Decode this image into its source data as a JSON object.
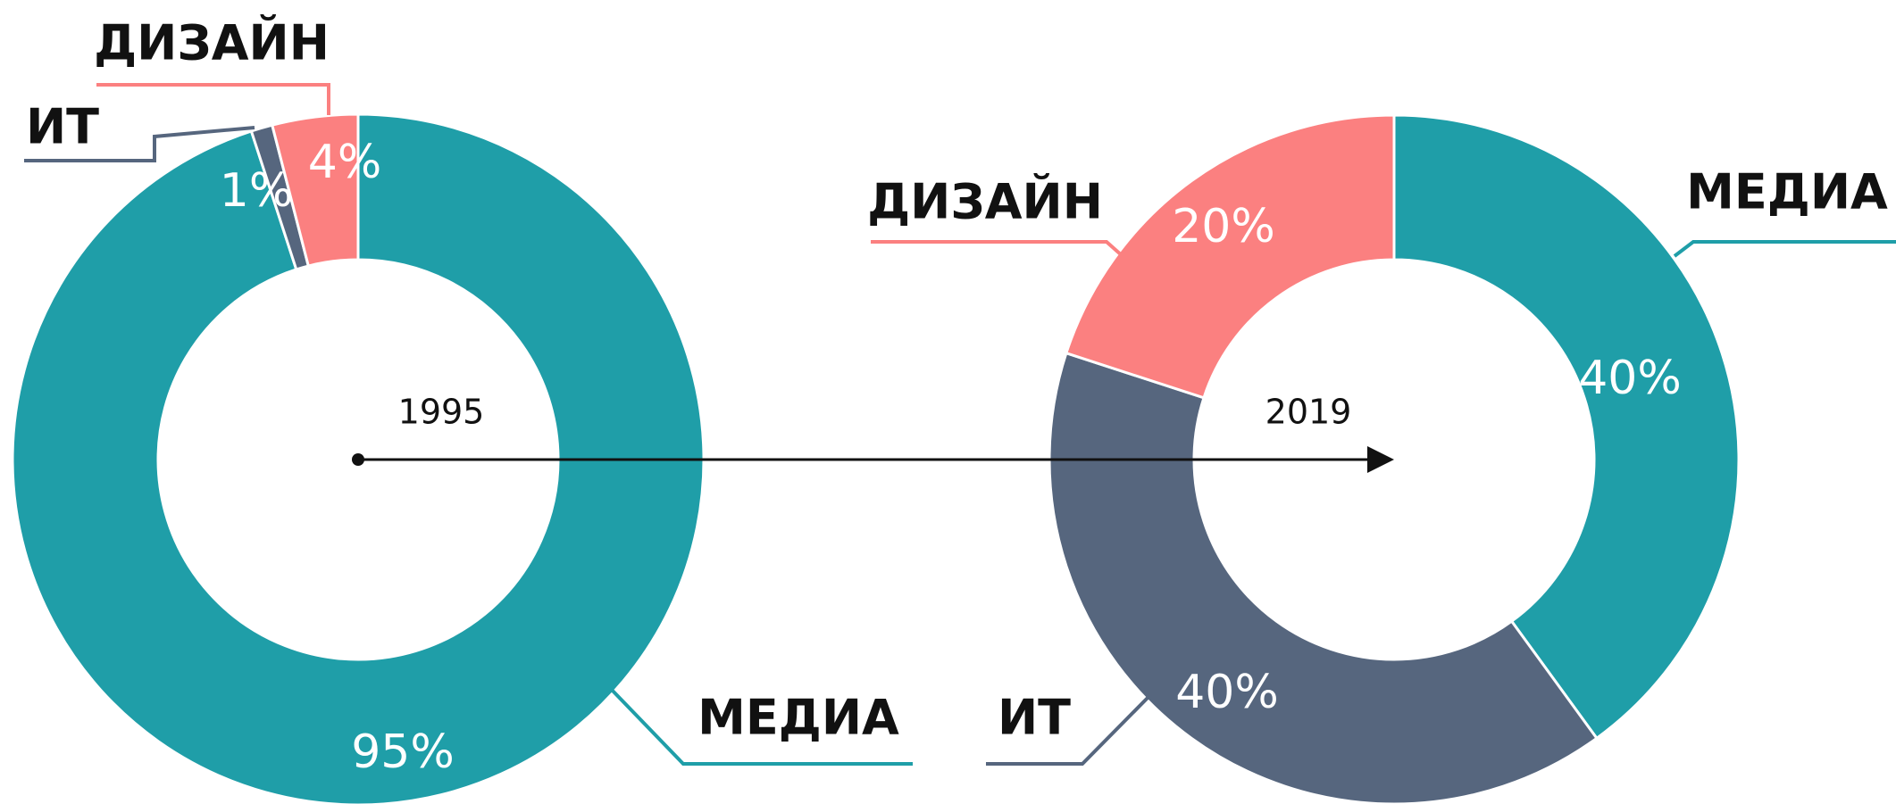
{
  "chart_data": [
    {
      "type": "donut",
      "center_label": "1995",
      "categories": [
        "МЕДИА",
        "ИТ",
        "ДИЗАЙН"
      ],
      "values": [
        95,
        1,
        4
      ],
      "value_labels": [
        "95%",
        "1%",
        "4%"
      ],
      "colors": [
        "#1f9ea8",
        "#56667e",
        "#fb8080"
      ]
    },
    {
      "type": "donut",
      "center_label": "2019",
      "categories": [
        "МЕДИА",
        "ИТ",
        "ДИЗАЙН"
      ],
      "values": [
        40,
        40,
        20
      ],
      "value_labels": [
        "40%",
        "40%",
        "20%"
      ],
      "colors": [
        "#1f9ea8",
        "#56667e",
        "#fb8080"
      ]
    }
  ]
}
